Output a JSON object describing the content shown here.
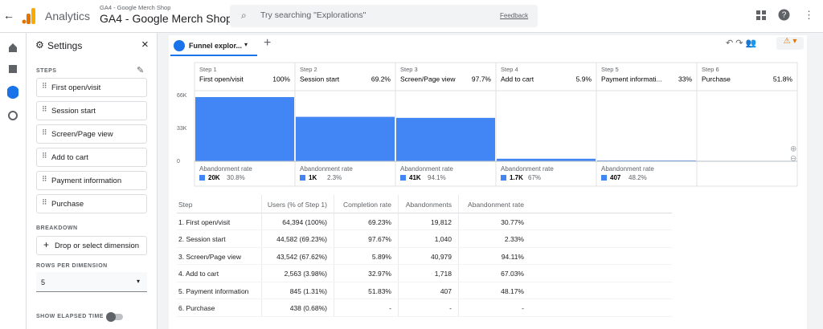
{
  "header": {
    "app": "Analytics",
    "account": "GA4 - Google Merch Shop",
    "property": "GA4 - Google Merch Shop",
    "search": "Try searching \"Explorations\"",
    "feedback": "Feedback"
  },
  "settings": {
    "title": "Settings",
    "steps_label": "STEPS",
    "steps": [
      "First open/visit",
      "Session start",
      "Screen/Page view",
      "Add to cart",
      "Payment information",
      "Purchase"
    ],
    "breakdown_label": "BREAKDOWN",
    "dimension": "Drop or select dimension",
    "rows_label": "ROWS PER DIMENSION",
    "rows_value": "5",
    "elapsed_label": "SHOW ELAPSED TIME"
  },
  "tab": "Funnel explor...",
  "chart_data": {
    "type": "bar",
    "steps": [
      {
        "step": "Step 1",
        "name": "First open/visit",
        "rate": "100%"
      },
      {
        "step": "Step 2",
        "name": "Session start",
        "rate": "69.2%"
      },
      {
        "step": "Step 3",
        "name": "Screen/Page view",
        "rate": "97.7%"
      },
      {
        "step": "Step 4",
        "name": "Add to cart",
        "rate": "5.9%"
      },
      {
        "step": "Step 5",
        "name": "Payment informati...",
        "rate": "33%"
      },
      {
        "step": "Step 6",
        "name": "Purchase",
        "rate": "51.8%"
      }
    ],
    "values": [
      64394,
      44582,
      43542,
      2563,
      845,
      438
    ],
    "color": "#4285f4",
    "ylim": [
      0,
      70000
    ],
    "yticks": [
      0,
      {
        "value": 33000,
        "label": "33K"
      },
      {
        "value": 66000,
        "label": "66K"
      }
    ],
    "abandonment_label": "Abandonment rate",
    "abandonment": [
      {
        "count": "20K",
        "rate": "30.8%"
      },
      {
        "count": "1K",
        "rate": "2.3%"
      },
      {
        "count": "41K",
        "rate": "94.1%"
      },
      {
        "count": "1.7K",
        "rate": "67%"
      },
      {
        "count": "407",
        "rate": "48.2%"
      }
    ]
  },
  "table": {
    "columns": [
      "Step",
      "Users (% of Step 1)",
      "Completion rate",
      "Abandonments",
      "Abandonment rate"
    ],
    "rows": [
      [
        "1. First open/visit",
        "64,394 (100%)",
        "69.23%",
        "19,812",
        "30.77%"
      ],
      [
        "2. Session start",
        "44,582 (69.23%)",
        "97.67%",
        "1,040",
        "2.33%"
      ],
      [
        "3. Screen/Page view",
        "43,542 (67.62%)",
        "5.89%",
        "40,979",
        "94.11%"
      ],
      [
        "4. Add to cart",
        "2,563 (3.98%)",
        "32.97%",
        "1,718",
        "67.03%"
      ],
      [
        "5. Payment information",
        "845 (1.31%)",
        "51.83%",
        "407",
        "48.17%"
      ],
      [
        "6. Purchase",
        "438 (0.68%)",
        "-",
        "-",
        "-"
      ]
    ]
  }
}
